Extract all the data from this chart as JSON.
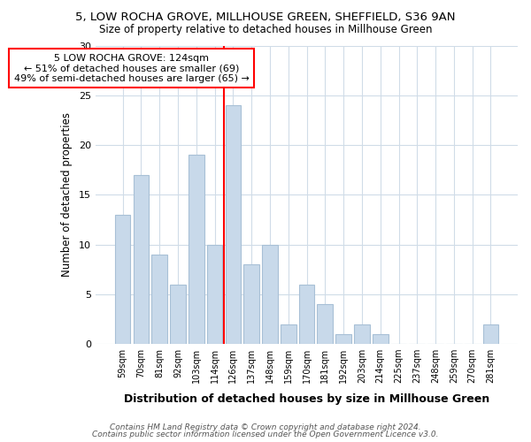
{
  "title1": "5, LOW ROCHA GROVE, MILLHOUSE GREEN, SHEFFIELD, S36 9AN",
  "title2": "Size of property relative to detached houses in Millhouse Green",
  "xlabel": "Distribution of detached houses by size in Millhouse Green",
  "ylabel": "Number of detached properties",
  "bar_labels": [
    "59sqm",
    "70sqm",
    "81sqm",
    "92sqm",
    "103sqm",
    "114sqm",
    "126sqm",
    "137sqm",
    "148sqm",
    "159sqm",
    "170sqm",
    "181sqm",
    "192sqm",
    "203sqm",
    "214sqm",
    "225sqm",
    "237sqm",
    "248sqm",
    "259sqm",
    "270sqm",
    "281sqm"
  ],
  "bar_values": [
    13,
    17,
    9,
    6,
    19,
    10,
    24,
    8,
    10,
    2,
    6,
    4,
    1,
    2,
    1,
    0,
    0,
    0,
    0,
    0,
    2
  ],
  "bar_color": "#c8d9ea",
  "bar_edge_color": "#a8c0d6",
  "vline_x_index": 6,
  "vline_color": "red",
  "annotation_title": "5 LOW ROCHA GROVE: 124sqm",
  "annotation_line1": "← 51% of detached houses are smaller (69)",
  "annotation_line2": "49% of semi-detached houses are larger (65) →",
  "annotation_box_color": "red",
  "background_color": "#ffffff",
  "grid_color": "#d0dce8",
  "footer1": "Contains HM Land Registry data © Crown copyright and database right 2024.",
  "footer2": "Contains public sector information licensed under the Open Government Licence v3.0.",
  "ylim": [
    0,
    30
  ],
  "yticks": [
    0,
    5,
    10,
    15,
    20,
    25,
    30
  ]
}
